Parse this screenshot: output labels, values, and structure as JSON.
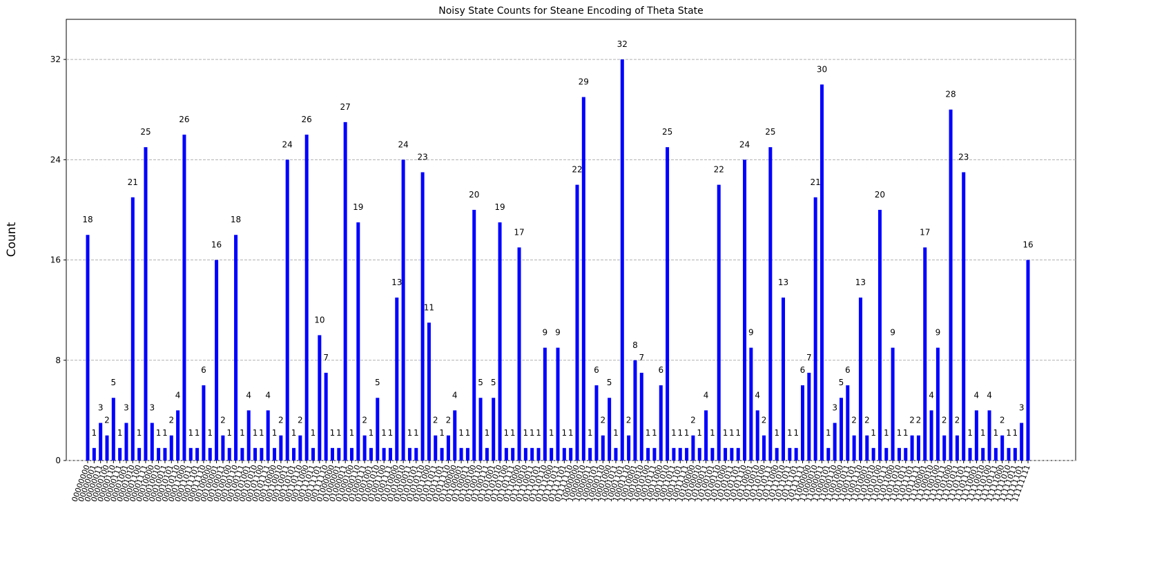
{
  "chart_data": {
    "type": "bar",
    "title": "Noisy State Counts for Steane Encoding of Theta State",
    "ylabel": "Count",
    "color": "#0000ff",
    "grid": true,
    "ylim": [
      0,
      35.2
    ],
    "yticks": [
      0,
      8,
      16,
      24,
      32
    ],
    "categories": [
      "00000000",
      "00000001",
      "00000011",
      "00000100",
      "00000110",
      "00000111",
      "00001001",
      "00001010",
      "00001100",
      "00001111",
      "00010000",
      "00010010",
      "00010011",
      "00010101",
      "00010110",
      "00011000",
      "00011011",
      "00011101",
      "00011110",
      "00100000",
      "00100001",
      "00100011",
      "00100100",
      "00100110",
      "00100111",
      "00101001",
      "00101010",
      "00101100",
      "00101111",
      "00110000",
      "00110010",
      "00110011",
      "00110101",
      "00110110",
      "00111000",
      "00111011",
      "00111101",
      "00111110",
      "01000000",
      "01000001",
      "01000011",
      "01000100",
      "01000110",
      "01000111",
      "01001001",
      "01001010",
      "01001100",
      "01001111",
      "01010000",
      "01010010",
      "01010011",
      "01010101",
      "01010110",
      "01011000",
      "01011011",
      "01011101",
      "01011110",
      "01100000",
      "01100001",
      "01100011",
      "01100100",
      "01100110",
      "01100111",
      "01101001",
      "01101010",
      "01101100",
      "01101111",
      "01110000",
      "01110010",
      "01110011",
      "01110101",
      "01110110",
      "01111000",
      "01111011",
      "01111101",
      "01111110",
      "10000000",
      "10000010",
      "10000011",
      "10000101",
      "10000110",
      "10001000",
      "10001011",
      "10001101",
      "10001110",
      "10010001",
      "10010010",
      "10010100",
      "10010111",
      "10011000",
      "10011010",
      "10011011",
      "10011101",
      "10011111",
      "10100000",
      "10100010",
      "10100011",
      "10100101",
      "10100110",
      "10101000",
      "10101011",
      "10101101",
      "10101110",
      "10110001",
      "10110010",
      "10110100",
      "10110111",
      "10111000",
      "10111010",
      "10111011",
      "10111101",
      "10111111",
      "11000000",
      "11000010",
      "11000011",
      "11000101",
      "11000110",
      "11001000",
      "11001011",
      "11001101",
      "11001110",
      "11010001",
      "11010010",
      "11010100",
      "11010111",
      "11011000",
      "11011010",
      "11011011",
      "11011101",
      "11011111",
      "11100001",
      "11100010",
      "11100100",
      "11100111",
      "11101000",
      "11101011",
      "11101101",
      "11101111",
      "11110001",
      "11110010",
      "11110100",
      "11110111",
      "11111000",
      "11111010",
      "11111011",
      "11111101",
      "11111111"
    ],
    "values": [
      18,
      1,
      3,
      2,
      5,
      1,
      3,
      21,
      1,
      25,
      3,
      1,
      1,
      2,
      4,
      26,
      1,
      1,
      6,
      1,
      16,
      2,
      1,
      18,
      1,
      4,
      1,
      1,
      4,
      1,
      2,
      24,
      1,
      2,
      26,
      1,
      10,
      7,
      1,
      1,
      27,
      1,
      19,
      2,
      1,
      5,
      1,
      1,
      13,
      24,
      1,
      1,
      23,
      11,
      2,
      1,
      2,
      4,
      1,
      1,
      20,
      5,
      1,
      5,
      19,
      1,
      1,
      17,
      1,
      1,
      1,
      9,
      1,
      9,
      1,
      1,
      22,
      29,
      1,
      6,
      2,
      5,
      1,
      32,
      2,
      8,
      7,
      1,
      1,
      6,
      25,
      1,
      1,
      1,
      2,
      1,
      4,
      1,
      22,
      1,
      1,
      1,
      24,
      9,
      4,
      2,
      25,
      1,
      13,
      1,
      1,
      6,
      7,
      21,
      30,
      1,
      3,
      5,
      6,
      2,
      13,
      2,
      1,
      20,
      1,
      9,
      1,
      1,
      2,
      2,
      17,
      4,
      9,
      2,
      28,
      2,
      23,
      1,
      4,
      1,
      4,
      1,
      2,
      1,
      1,
      3,
      16
    ]
  }
}
